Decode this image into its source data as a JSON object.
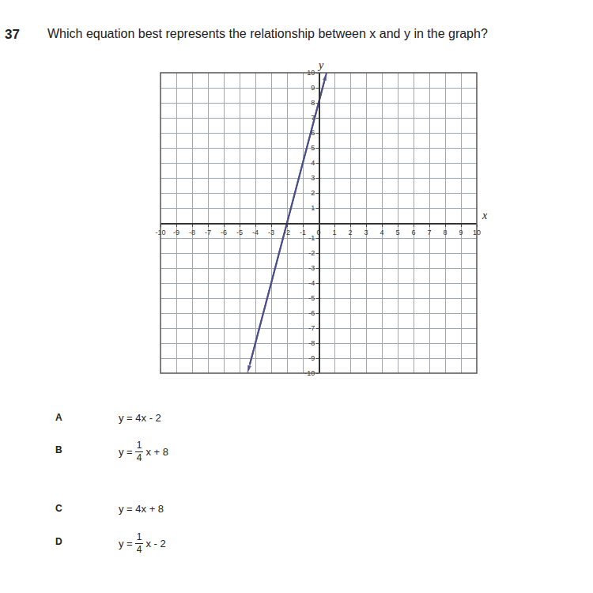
{
  "number": "37",
  "question": "Which equation best represents the relationship between x and y in the graph?",
  "choices": [
    {
      "letter": "A",
      "text": "y = 4x - 2"
    },
    {
      "letter": "B",
      "prefix": "y =",
      "numerator": "1",
      "denominator": "4",
      "suffix": "x + 8"
    },
    {
      "letter": "C",
      "text": "y = 4x + 8"
    },
    {
      "letter": "D",
      "prefix": "y =",
      "numerator": "1",
      "denominator": "4",
      "suffix": "x - 2"
    }
  ],
  "chart_data": {
    "type": "line",
    "x_label": "x",
    "y_label": "y",
    "x": [
      -4.5,
      0.5
    ],
    "values": [
      -10,
      10
    ],
    "color": "#4b4f8c",
    "marker": "arrow",
    "xlim": [
      -10,
      10
    ],
    "ylim": [
      -10,
      10
    ],
    "xticks": [
      -10,
      -9,
      -8,
      -7,
      -6,
      -5,
      -4,
      -3,
      -2,
      -1,
      0,
      1,
      2,
      3,
      4,
      5,
      6,
      7,
      8,
      9,
      10
    ],
    "yticks": [
      -10,
      -9,
      -8,
      -7,
      -6,
      -5,
      -4,
      -3,
      -2,
      -1,
      1,
      2,
      3,
      4,
      5,
      6,
      7,
      8,
      9,
      10
    ],
    "grid": true
  }
}
